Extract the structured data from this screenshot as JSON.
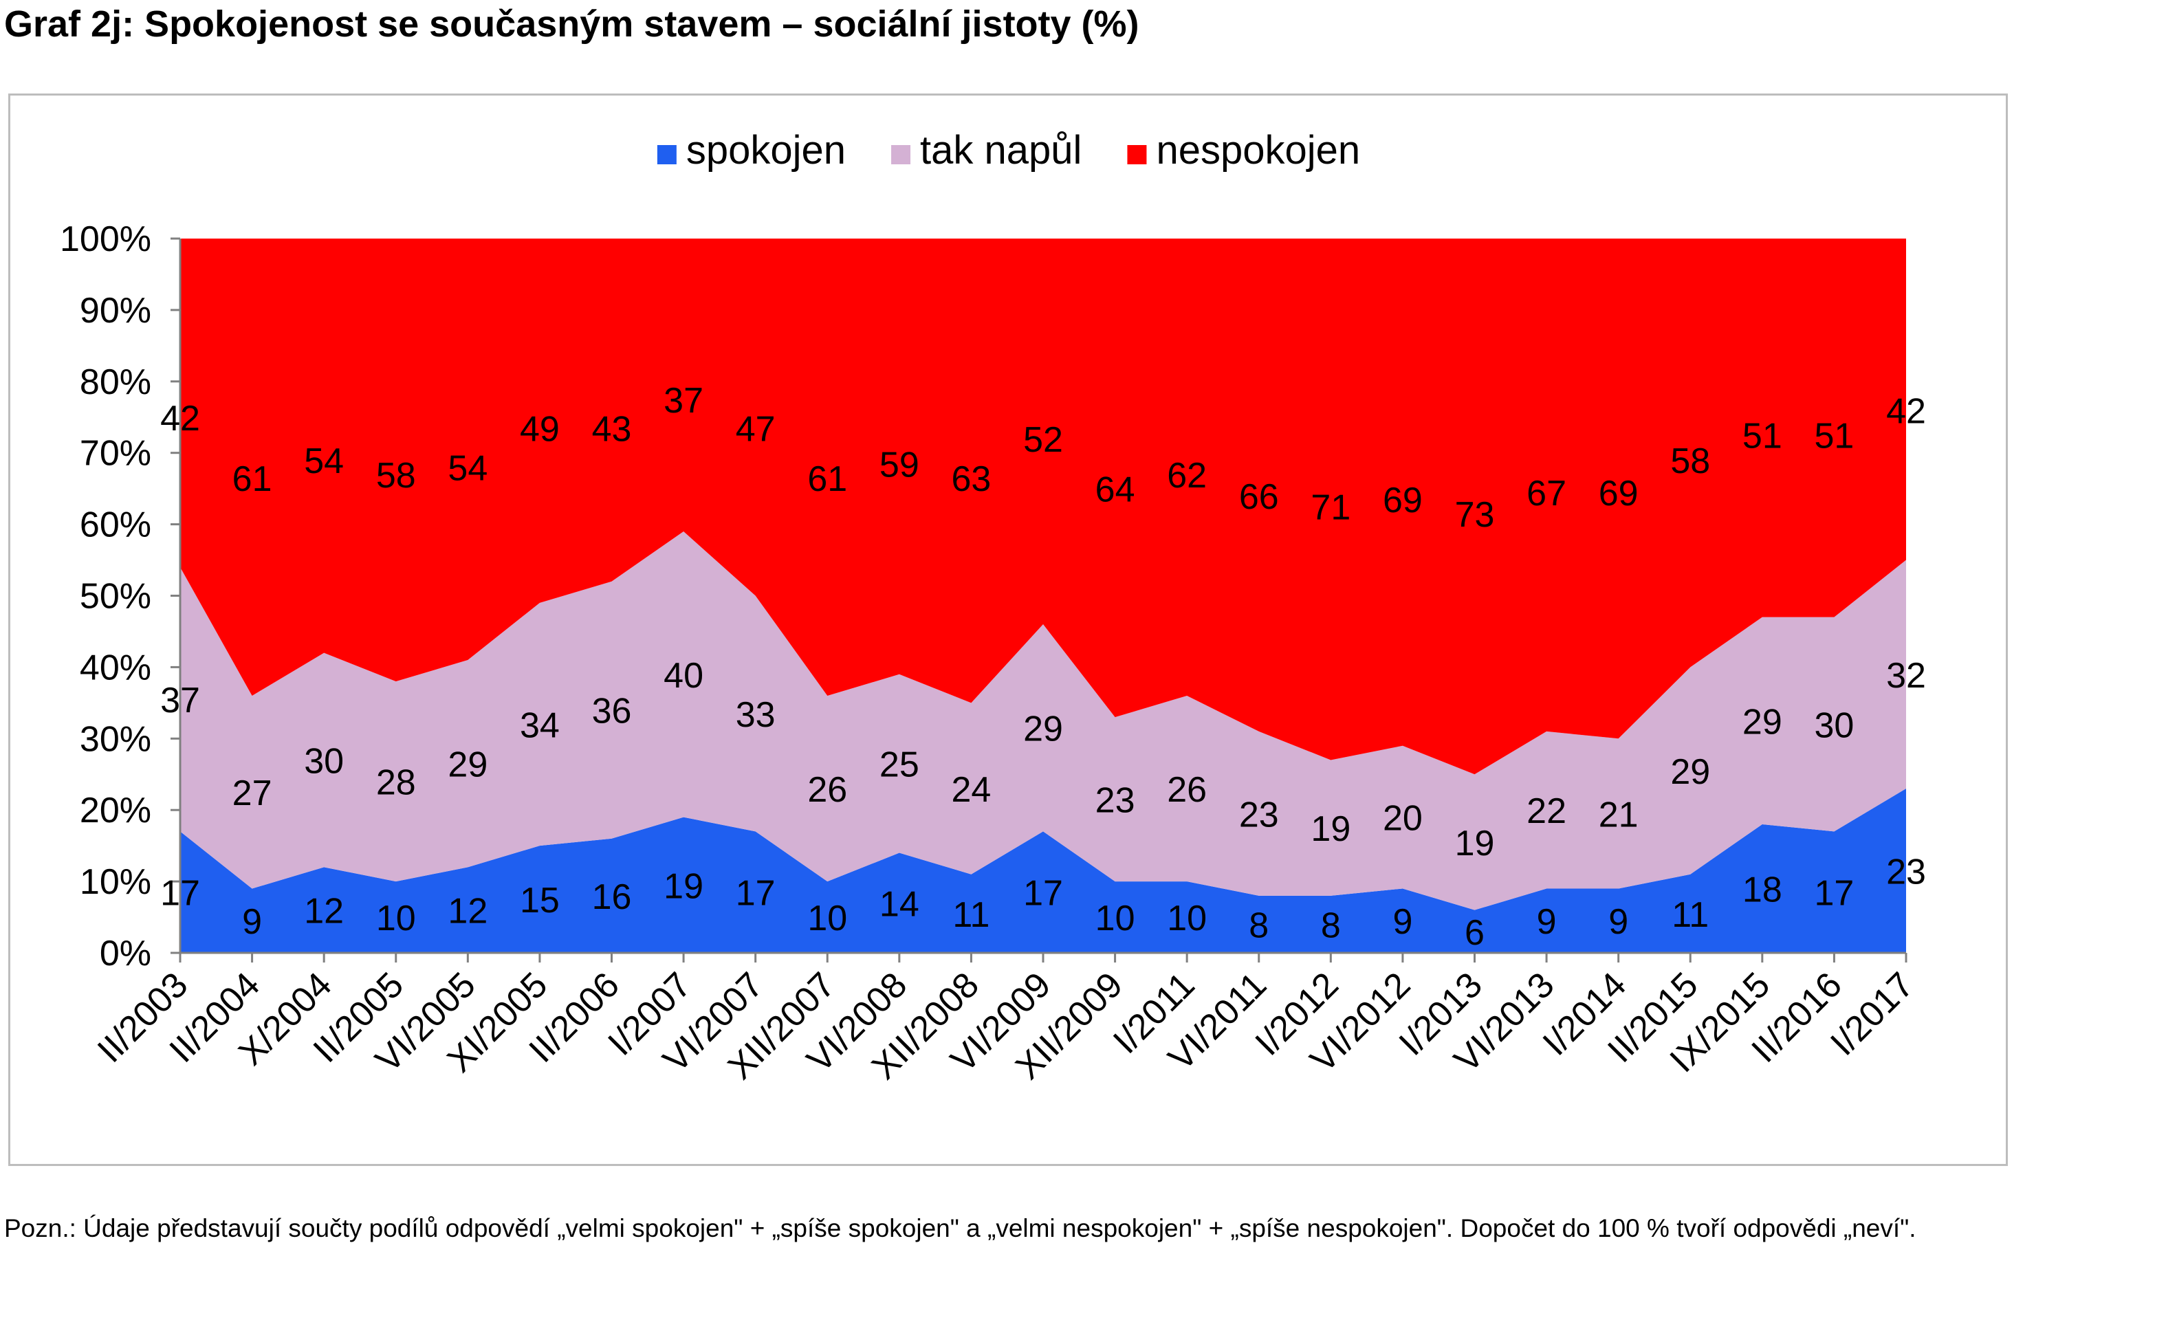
{
  "title": "Graf 2j: Spokojenost se současným stavem – sociální jistoty (%)",
  "note": "Pozn.: Údaje představují součty podílů odpovědí „velmi spokojen\" + „spíše spokojen\" a „velmi nespokojen\" + „spíše nespokojen\". Dopočet do 100 % tvoří odpovědi „neví\".",
  "chart_data": {
    "type": "area",
    "stacked": true,
    "percent": true,
    "title": "",
    "xlabel": "",
    "ylabel": "",
    "ylim": [
      0,
      100
    ],
    "yticks": [
      "0%",
      "10%",
      "20%",
      "30%",
      "40%",
      "50%",
      "60%",
      "70%",
      "80%",
      "90%",
      "100%"
    ],
    "legend_position": "top",
    "grid": false,
    "categories": [
      "II/2003",
      "II/2004",
      "X/2004",
      "II/2005",
      "VI/2005",
      "XI/2005",
      "II/2006",
      "I/2007",
      "VI/2007",
      "XII/2007",
      "VI/2008",
      "XII/2008",
      "VI/2009",
      "XII/2009",
      "I/2011",
      "VI/2011",
      "I/2012",
      "VI/2012",
      "I/2013",
      "VI/2013",
      "I/2014",
      "II/2015",
      "IX/2015",
      "II/2016",
      "I/2017"
    ],
    "series": [
      {
        "name": "spokojen",
        "color": "#1f5ff0",
        "values": [
          17,
          9,
          12,
          10,
          12,
          15,
          16,
          19,
          17,
          10,
          14,
          11,
          17,
          10,
          10,
          8,
          8,
          9,
          6,
          9,
          9,
          11,
          18,
          17,
          23
        ]
      },
      {
        "name": "tak napůl",
        "color": "#d4b1d4",
        "values": [
          37,
          27,
          30,
          28,
          29,
          34,
          36,
          40,
          33,
          26,
          25,
          24,
          29,
          23,
          26,
          23,
          19,
          20,
          19,
          22,
          21,
          29,
          29,
          30,
          32
        ]
      },
      {
        "name": "nespokojen",
        "color": "#ff0000",
        "values": [
          42,
          61,
          54,
          58,
          54,
          49,
          43,
          37,
          47,
          61,
          59,
          63,
          52,
          64,
          62,
          66,
          71,
          69,
          73,
          67,
          69,
          58,
          51,
          51,
          42
        ]
      }
    ]
  }
}
